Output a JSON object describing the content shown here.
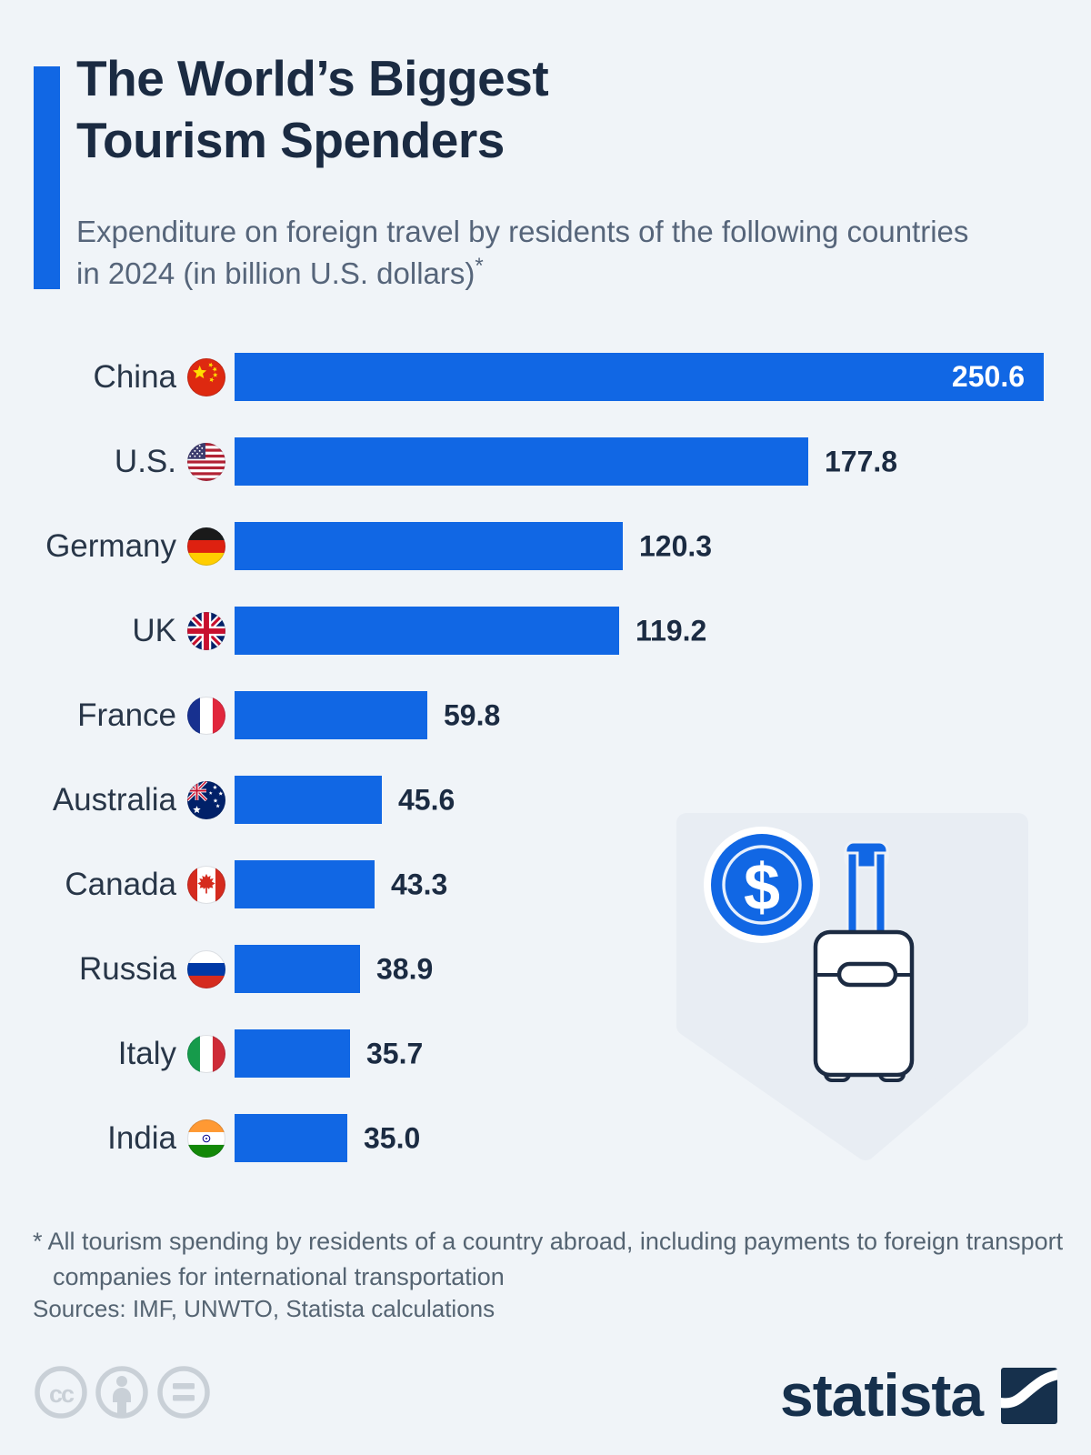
{
  "page": {
    "background_color": "#f0f4f8",
    "accent_blue": "#1167e4",
    "navy": "#1b2b42",
    "muted_gray": "#556472"
  },
  "header": {
    "title": "The World’s Biggest Tourism Spenders",
    "subtitle": "Expenditure on foreign travel by residents of the following countries in 2024 (in billion U.S. dollars)",
    "subtitle_footnote_marker": "*"
  },
  "chart_data": {
    "type": "bar",
    "orientation": "horizontal",
    "title": "The World’s Biggest Tourism Spenders",
    "value_unit": "billion U.S. dollars",
    "year": "2024",
    "xlim": [
      0,
      250.6
    ],
    "grid": false,
    "legend": false,
    "bar_color": "#1167e4",
    "categories": [
      "China",
      "U.S.",
      "Germany",
      "UK",
      "France",
      "Australia",
      "Canada",
      "Russia",
      "Italy",
      "India"
    ],
    "values": [
      250.6,
      177.8,
      120.3,
      119.2,
      59.8,
      45.6,
      43.3,
      38.9,
      35.7,
      35.0
    ],
    "rows": [
      {
        "country": "China",
        "flag_icon": "china-flag-icon",
        "value": 250.6,
        "value_label": "250.6",
        "value_label_inside": true
      },
      {
        "country": "U.S.",
        "flag_icon": "us-flag-icon",
        "value": 177.8,
        "value_label": "177.8",
        "value_label_inside": false
      },
      {
        "country": "Germany",
        "flag_icon": "germany-flag-icon",
        "value": 120.3,
        "value_label": "120.3",
        "value_label_inside": false
      },
      {
        "country": "UK",
        "flag_icon": "uk-flag-icon",
        "value": 119.2,
        "value_label": "119.2",
        "value_label_inside": false
      },
      {
        "country": "France",
        "flag_icon": "france-flag-icon",
        "value": 59.8,
        "value_label": "59.8",
        "value_label_inside": false
      },
      {
        "country": "Australia",
        "flag_icon": "australia-flag-icon",
        "value": 45.6,
        "value_label": "45.6",
        "value_label_inside": false
      },
      {
        "country": "Canada",
        "flag_icon": "canada-flag-icon",
        "value": 43.3,
        "value_label": "43.3",
        "value_label_inside": false
      },
      {
        "country": "Russia",
        "flag_icon": "russia-flag-icon",
        "value": 38.9,
        "value_label": "38.9",
        "value_label_inside": false
      },
      {
        "country": "Italy",
        "flag_icon": "italy-flag-icon",
        "value": 35.7,
        "value_label": "35.7",
        "value_label_inside": false
      },
      {
        "country": "India",
        "flag_icon": "india-flag-icon",
        "value": 35.0,
        "value_label": "35.0",
        "value_label_inside": false
      }
    ]
  },
  "watermark": {
    "icons": [
      "dollar-coin-icon",
      "suitcase-icon"
    ],
    "coin_symbol": "$"
  },
  "footnote": {
    "line1": "* All tourism spending by residents of a country abroad, including payments to foreign transport",
    "line2": "companies for international transportation",
    "sources": "Sources: IMF, UNWTO, Statista calculations"
  },
  "footer": {
    "license_icons": [
      "cc-icon",
      "attribution-icon",
      "equal-icon"
    ],
    "brand": "statista"
  }
}
